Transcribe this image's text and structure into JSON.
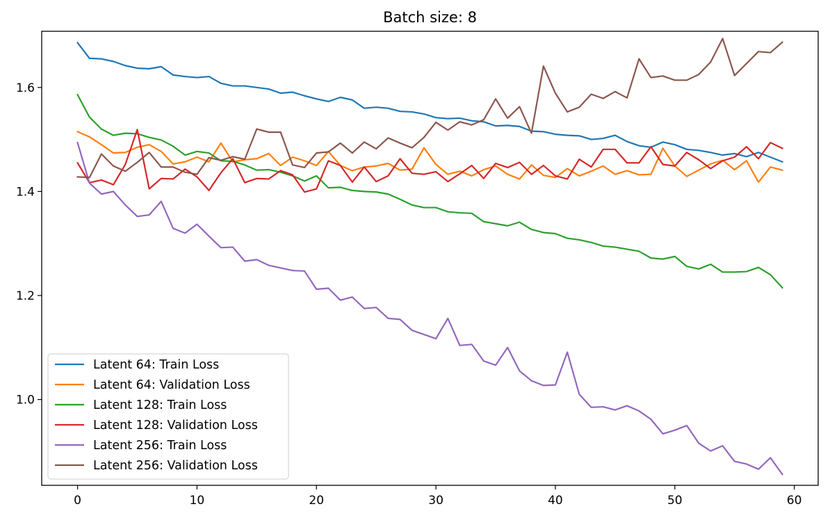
{
  "chart_data": {
    "type": "line",
    "title": "Batch size: 8",
    "xlabel": "",
    "ylabel": "",
    "xlim": [
      -3.0,
      62.0
    ],
    "ylim": [
      0.835,
      1.708
    ],
    "xticks": [
      0,
      10,
      20,
      30,
      40,
      50,
      60
    ],
    "yticks": [
      1.0,
      1.2,
      1.4,
      1.6
    ],
    "ytick_labels": [
      "1.0",
      "1.2",
      "1.4",
      "1.6"
    ],
    "grid": false,
    "legend_position": "lower-left",
    "x": [
      0,
      1,
      2,
      3,
      4,
      5,
      6,
      7,
      8,
      9,
      10,
      11,
      12,
      13,
      14,
      15,
      16,
      17,
      18,
      19,
      20,
      21,
      22,
      23,
      24,
      25,
      26,
      27,
      28,
      29,
      30,
      31,
      32,
      33,
      34,
      35,
      36,
      37,
      38,
      39,
      40,
      41,
      42,
      43,
      44,
      45,
      46,
      47,
      48,
      49,
      50,
      51,
      52,
      53,
      54,
      55,
      56,
      57,
      58,
      59
    ],
    "series": [
      {
        "name": "Latent 64: Train Loss",
        "color": "#1f77b4",
        "values": [
          1.686,
          1.656,
          1.655,
          1.65,
          1.642,
          1.637,
          1.636,
          1.64,
          1.624,
          1.621,
          1.619,
          1.621,
          1.608,
          1.603,
          1.603,
          1.6,
          1.597,
          1.589,
          1.591,
          1.584,
          1.578,
          1.573,
          1.581,
          1.576,
          1.56,
          1.562,
          1.56,
          1.554,
          1.553,
          1.549,
          1.542,
          1.54,
          1.541,
          1.536,
          1.534,
          1.526,
          1.527,
          1.525,
          1.516,
          1.515,
          1.51,
          1.508,
          1.507,
          1.5,
          1.502,
          1.508,
          1.496,
          1.488,
          1.485,
          1.495,
          1.49,
          1.481,
          1.479,
          1.475,
          1.47,
          1.473,
          1.467,
          1.475,
          1.466,
          1.457
        ]
      },
      {
        "name": "Latent 64: Validation Loss",
        "color": "#ff7f0e",
        "values": [
          1.515,
          1.505,
          1.49,
          1.474,
          1.475,
          1.485,
          1.49,
          1.477,
          1.453,
          1.457,
          1.466,
          1.457,
          1.493,
          1.457,
          1.461,
          1.463,
          1.473,
          1.45,
          1.466,
          1.459,
          1.45,
          1.477,
          1.45,
          1.44,
          1.447,
          1.449,
          1.454,
          1.441,
          1.443,
          1.484,
          1.452,
          1.433,
          1.439,
          1.43,
          1.442,
          1.449,
          1.433,
          1.424,
          1.451,
          1.431,
          1.427,
          1.444,
          1.43,
          1.439,
          1.449,
          1.433,
          1.44,
          1.432,
          1.433,
          1.483,
          1.449,
          1.429,
          1.441,
          1.453,
          1.46,
          1.442,
          1.459,
          1.418,
          1.447,
          1.441
        ]
      },
      {
        "name": "Latent 128: Train Loss",
        "color": "#2ca02c",
        "values": [
          1.586,
          1.543,
          1.52,
          1.508,
          1.512,
          1.511,
          1.504,
          1.499,
          1.487,
          1.47,
          1.477,
          1.474,
          1.459,
          1.458,
          1.451,
          1.441,
          1.442,
          1.437,
          1.43,
          1.42,
          1.43,
          1.407,
          1.408,
          1.402,
          1.4,
          1.399,
          1.395,
          1.385,
          1.374,
          1.369,
          1.369,
          1.361,
          1.359,
          1.358,
          1.342,
          1.338,
          1.334,
          1.341,
          1.327,
          1.321,
          1.319,
          1.31,
          1.307,
          1.302,
          1.295,
          1.293,
          1.289,
          1.285,
          1.272,
          1.27,
          1.275,
          1.256,
          1.251,
          1.26,
          1.245,
          1.245,
          1.246,
          1.254,
          1.24,
          1.215
        ]
      },
      {
        "name": "Latent 128: Validation Loss",
        "color": "#d62728",
        "values": [
          1.455,
          1.417,
          1.422,
          1.413,
          1.452,
          1.519,
          1.405,
          1.425,
          1.424,
          1.443,
          1.428,
          1.402,
          1.436,
          1.463,
          1.417,
          1.425,
          1.424,
          1.44,
          1.432,
          1.399,
          1.405,
          1.459,
          1.45,
          1.418,
          1.447,
          1.419,
          1.43,
          1.463,
          1.435,
          1.433,
          1.438,
          1.419,
          1.434,
          1.45,
          1.425,
          1.454,
          1.446,
          1.456,
          1.433,
          1.45,
          1.43,
          1.424,
          1.462,
          1.447,
          1.481,
          1.481,
          1.455,
          1.455,
          1.486,
          1.452,
          1.449,
          1.475,
          1.461,
          1.444,
          1.459,
          1.466,
          1.486,
          1.463,
          1.494,
          1.483
        ]
      },
      {
        "name": "Latent 256: Train Loss",
        "color": "#9467bd",
        "values": [
          1.494,
          1.416,
          1.395,
          1.4,
          1.374,
          1.352,
          1.355,
          1.381,
          1.329,
          1.32,
          1.337,
          1.314,
          1.292,
          1.293,
          1.266,
          1.269,
          1.258,
          1.253,
          1.248,
          1.247,
          1.212,
          1.214,
          1.191,
          1.197,
          1.175,
          1.177,
          1.156,
          1.154,
          1.133,
          1.125,
          1.117,
          1.156,
          1.104,
          1.106,
          1.074,
          1.066,
          1.1,
          1.055,
          1.036,
          1.027,
          1.028,
          1.091,
          1.01,
          0.985,
          0.986,
          0.98,
          0.988,
          0.978,
          0.962,
          0.934,
          0.941,
          0.95,
          0.916,
          0.901,
          0.911,
          0.881,
          0.876,
          0.866,
          0.888,
          0.856
        ]
      },
      {
        "name": "Latent 256: Validation Loss",
        "color": "#8c564b",
        "values": [
          1.428,
          1.427,
          1.472,
          1.449,
          1.439,
          1.456,
          1.475,
          1.447,
          1.447,
          1.437,
          1.433,
          1.465,
          1.46,
          1.467,
          1.462,
          1.52,
          1.514,
          1.514,
          1.451,
          1.446,
          1.474,
          1.476,
          1.493,
          1.474,
          1.495,
          1.482,
          1.503,
          1.493,
          1.484,
          1.504,
          1.533,
          1.518,
          1.534,
          1.528,
          1.538,
          1.578,
          1.541,
          1.563,
          1.512,
          1.641,
          1.589,
          1.553,
          1.562,
          1.587,
          1.579,
          1.592,
          1.58,
          1.655,
          1.619,
          1.622,
          1.614,
          1.614,
          1.625,
          1.649,
          1.694,
          1.623,
          1.646,
          1.669,
          1.667,
          1.687
        ]
      }
    ]
  }
}
